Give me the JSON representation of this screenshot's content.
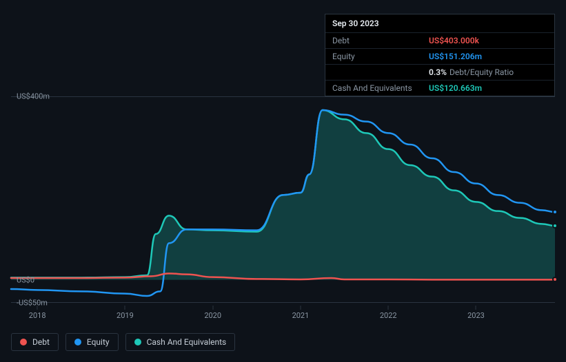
{
  "tooltip": {
    "date": "Sep 30 2023",
    "rows": [
      {
        "label": "Debt",
        "value": "US$403.000k",
        "color": "#ef5350"
      },
      {
        "label": "Equity",
        "value": "US$151.206m",
        "color": "#2196f3"
      },
      {
        "label": "",
        "value": "0.3%",
        "suffix": "Debt/Equity Ratio",
        "color": "#e6ebf0"
      },
      {
        "label": "Cash And Equivalents",
        "value": "US$120.663m",
        "color": "#1ec8b8"
      }
    ]
  },
  "chart": {
    "type": "area-line",
    "background_color": "#0d1219",
    "grid_color": "#2a3440",
    "ylim": [
      -50,
      400
    ],
    "y_ticks": [
      {
        "v": 400,
        "label": "US$400m"
      },
      {
        "v": 0,
        "label": "US$0"
      },
      {
        "v": -50,
        "label": "-US$50m"
      }
    ],
    "xlim": [
      2017.7,
      2023.9
    ],
    "x_ticks": [
      {
        "v": 2018,
        "label": "2018"
      },
      {
        "v": 2019,
        "label": "2019"
      },
      {
        "v": 2020,
        "label": "2020"
      },
      {
        "v": 2021,
        "label": "2021"
      },
      {
        "v": 2022,
        "label": "2022"
      },
      {
        "v": 2023,
        "label": "2023"
      }
    ],
    "series": [
      {
        "name": "Cash And Equivalents",
        "color": "#1ec8b8",
        "fill": "rgba(30,200,184,0.25)",
        "line_width": 2.5,
        "end_dot": true,
        "points": [
          [
            2017.7,
            5
          ],
          [
            2018.0,
            5
          ],
          [
            2018.5,
            5
          ],
          [
            2019.0,
            6
          ],
          [
            2019.25,
            10
          ],
          [
            2019.35,
            100
          ],
          [
            2019.5,
            140
          ],
          [
            2019.7,
            110
          ],
          [
            2020.0,
            108
          ],
          [
            2020.5,
            105
          ],
          [
            2020.8,
            185
          ],
          [
            2021.0,
            190
          ],
          [
            2021.1,
            230
          ],
          [
            2021.25,
            370
          ],
          [
            2021.5,
            350
          ],
          [
            2021.75,
            320
          ],
          [
            2022.0,
            285
          ],
          [
            2022.25,
            250
          ],
          [
            2022.5,
            225
          ],
          [
            2022.75,
            195
          ],
          [
            2023.0,
            170
          ],
          [
            2023.25,
            150
          ],
          [
            2023.5,
            135
          ],
          [
            2023.75,
            122
          ],
          [
            2023.9,
            118
          ]
        ]
      },
      {
        "name": "Equity",
        "color": "#2196f3",
        "line_width": 2.5,
        "end_dot": true,
        "points": [
          [
            2017.7,
            -20
          ],
          [
            2018.0,
            -22
          ],
          [
            2018.5,
            -25
          ],
          [
            2019.0,
            -30
          ],
          [
            2019.25,
            -35
          ],
          [
            2019.4,
            -25
          ],
          [
            2019.5,
            80
          ],
          [
            2019.7,
            110
          ],
          [
            2020.0,
            110
          ],
          [
            2020.5,
            108
          ],
          [
            2020.8,
            185
          ],
          [
            2021.0,
            190
          ],
          [
            2021.1,
            230
          ],
          [
            2021.25,
            370
          ],
          [
            2021.5,
            360
          ],
          [
            2021.75,
            345
          ],
          [
            2022.0,
            320
          ],
          [
            2022.25,
            295
          ],
          [
            2022.5,
            265
          ],
          [
            2022.75,
            235
          ],
          [
            2023.0,
            210
          ],
          [
            2023.25,
            185
          ],
          [
            2023.5,
            168
          ],
          [
            2023.75,
            152
          ],
          [
            2023.9,
            148
          ]
        ]
      },
      {
        "name": "Debt",
        "color": "#ef5350",
        "line_width": 2.5,
        "end_dot": true,
        "points": [
          [
            2017.7,
            4
          ],
          [
            2018.0,
            4
          ],
          [
            2018.5,
            4
          ],
          [
            2019.0,
            5
          ],
          [
            2019.3,
            8
          ],
          [
            2019.5,
            14
          ],
          [
            2019.7,
            12
          ],
          [
            2020.0,
            6
          ],
          [
            2020.5,
            2
          ],
          [
            2021.0,
            1
          ],
          [
            2021.35,
            4
          ],
          [
            2021.5,
            1
          ],
          [
            2022.0,
            1
          ],
          [
            2022.5,
            0.5
          ],
          [
            2023.0,
            0.5
          ],
          [
            2023.5,
            0.4
          ],
          [
            2023.9,
            0.4
          ]
        ]
      }
    ],
    "legend": [
      {
        "label": "Debt",
        "color": "#ef5350"
      },
      {
        "label": "Equity",
        "color": "#2196f3"
      },
      {
        "label": "Cash And Equivalents",
        "color": "#1ec8b8"
      }
    ]
  }
}
